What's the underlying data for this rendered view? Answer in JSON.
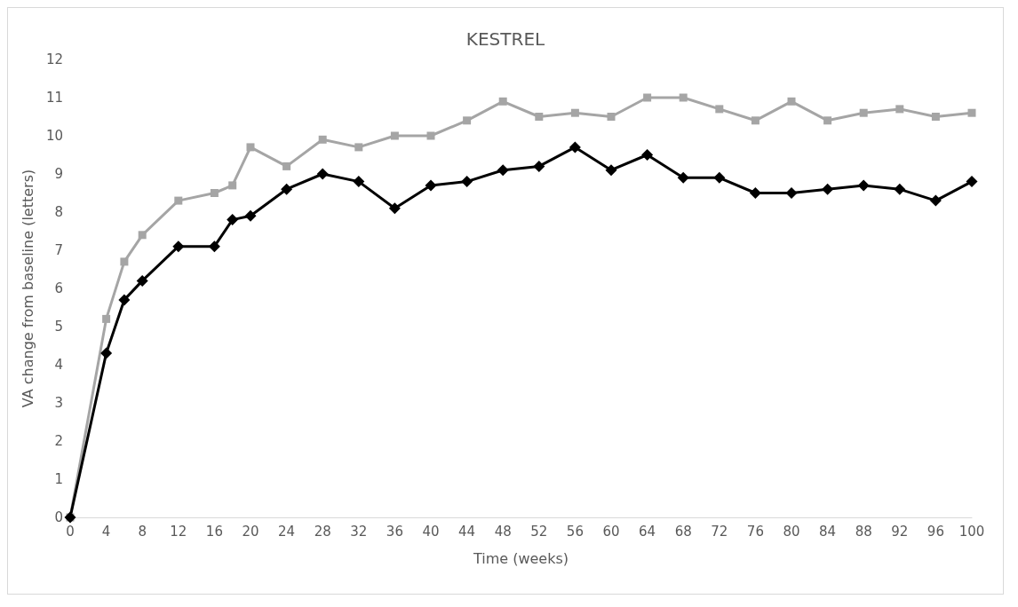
{
  "chart_data": {
    "type": "line",
    "title": "KESTREL",
    "xlabel": "Time (weeks)",
    "ylabel": "VA change from baseline (letters)",
    "xlim": [
      0,
      100
    ],
    "xticks": [
      0,
      4,
      8,
      12,
      16,
      20,
      24,
      28,
      32,
      36,
      40,
      44,
      48,
      52,
      56,
      60,
      64,
      68,
      72,
      76,
      80,
      84,
      88,
      92,
      96,
      100
    ],
    "ylim": [
      0,
      12
    ],
    "yticks": [
      0,
      1,
      2,
      3,
      4,
      5,
      6,
      7,
      8,
      9,
      10,
      11,
      12
    ],
    "grid": false,
    "x": [
      0,
      4,
      6,
      8,
      12,
      16,
      18,
      20,
      24,
      28,
      32,
      36,
      40,
      44,
      48,
      52,
      56,
      60,
      64,
      68,
      72,
      76,
      80,
      84,
      88,
      92,
      96,
      100
    ],
    "series": [
      {
        "color": "#a5a5a5",
        "marker": "square",
        "values": [
          0,
          5.2,
          6.7,
          7.4,
          8.3,
          8.5,
          8.7,
          9.7,
          9.2,
          9.9,
          9.7,
          10.0,
          10.0,
          10.4,
          10.9,
          10.5,
          10.6,
          10.5,
          11.0,
          11.0,
          10.7,
          10.4,
          10.9,
          10.4,
          10.6,
          10.7,
          10.5,
          10.6
        ]
      },
      {
        "color": "#000000",
        "marker": "diamond",
        "values": [
          0,
          4.3,
          5.7,
          6.2,
          7.1,
          7.1,
          7.8,
          7.9,
          8.6,
          9.0,
          8.8,
          8.1,
          8.7,
          8.8,
          9.1,
          9.2,
          9.7,
          9.1,
          9.5,
          8.9,
          8.9,
          8.5,
          8.5,
          8.6,
          8.7,
          8.6,
          8.3,
          8.8
        ]
      }
    ],
    "line_style": "solid"
  }
}
